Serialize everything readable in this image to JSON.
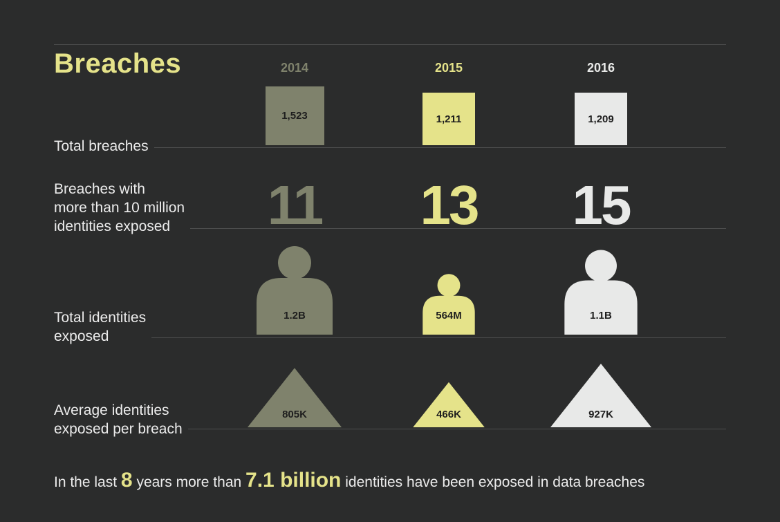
{
  "title": "Breaches",
  "colors": {
    "2014": "#7f826c",
    "2015": "#e5e38a",
    "2016": "#e8e9e8",
    "background": "#2b2c2c",
    "rule": "#4c4d4d"
  },
  "rows": {
    "total_breaches": "Total breaches",
    "large_breaches": [
      "Breaches with",
      "more than 10 million",
      "identities exposed"
    ],
    "identities": [
      "Total identities",
      "exposed"
    ],
    "avg": [
      "Average identities",
      "exposed per breach"
    ]
  },
  "footer": {
    "part1": "In the last",
    "years": "8",
    "part2": "years more than",
    "total": "7.1 billion",
    "part3": "identities have been exposed in data breaches"
  },
  "chart_data": {
    "type": "table",
    "title": "Breaches",
    "years": [
      "2014",
      "2015",
      "2016"
    ],
    "total_breaches": {
      "values": [
        1523,
        1211,
        1209
      ],
      "labels": [
        "1,523",
        "1,211",
        "1,209"
      ]
    },
    "breaches_over_10m": {
      "values": [
        11,
        13,
        15
      ],
      "labels": [
        "11",
        "13",
        "15"
      ]
    },
    "total_identities_exposed": {
      "values_millions": [
        1200,
        564,
        1100
      ],
      "labels": [
        "1.2B",
        "564M",
        "1.1B"
      ]
    },
    "avg_identities_per_breach": {
      "values_thousands": [
        805,
        466,
        927
      ],
      "labels": [
        "805K",
        "466K",
        "927K"
      ]
    }
  }
}
